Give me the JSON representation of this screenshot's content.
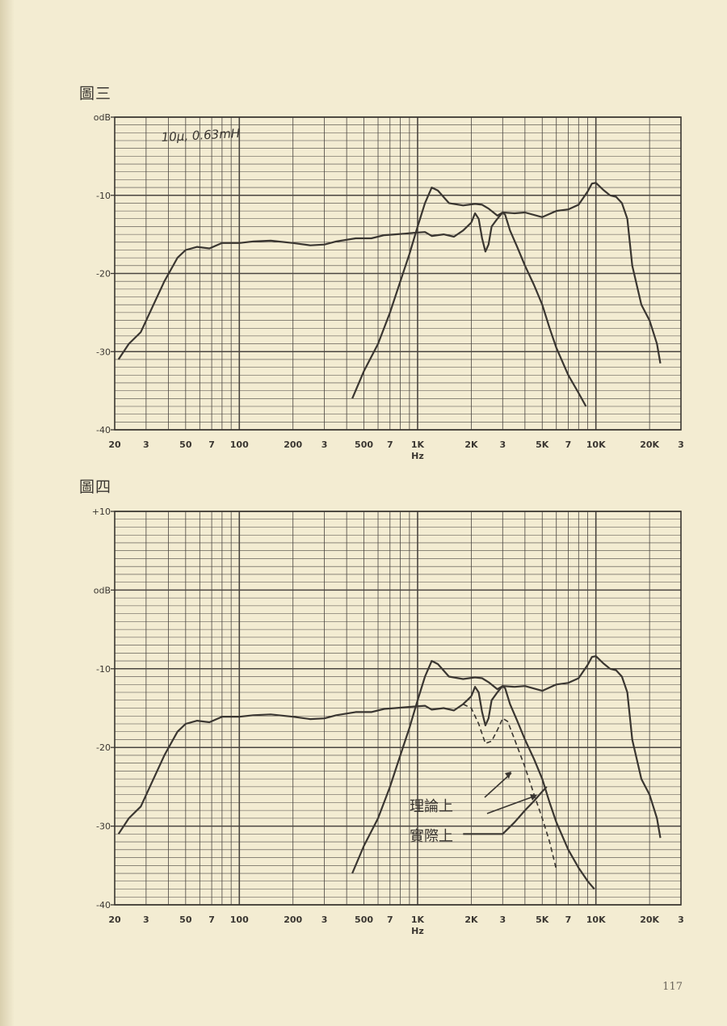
{
  "figures": [
    {
      "label": "圖三",
      "annotation": "10μ, 0.63mH"
    },
    {
      "label": "圖四",
      "annotation_theory": "理論上",
      "annotation_actual": "實際上"
    }
  ],
  "page_number": "117",
  "chart_data": [
    {
      "type": "line",
      "title": "圖三",
      "xlabel": "Hz",
      "ylabel": "",
      "x_scale": "log",
      "xlim": [
        20,
        30000
      ],
      "ylim": [
        -40,
        0
      ],
      "grid": true,
      "x_ticks": [
        {
          "v": 20,
          "t": "20"
        },
        {
          "v": 30,
          "t": "3"
        },
        {
          "v": 50,
          "t": "50"
        },
        {
          "v": 70,
          "t": "7"
        },
        {
          "v": 100,
          "t": "100"
        },
        {
          "v": 200,
          "t": "200"
        },
        {
          "v": 300,
          "t": "3"
        },
        {
          "v": 500,
          "t": "500"
        },
        {
          "v": 700,
          "t": "7"
        },
        {
          "v": 1000,
          "t": "1K"
        },
        {
          "v": 2000,
          "t": "2K"
        },
        {
          "v": 3000,
          "t": "3"
        },
        {
          "v": 5000,
          "t": "5K"
        },
        {
          "v": 7000,
          "t": "7"
        },
        {
          "v": 10000,
          "t": "10K"
        },
        {
          "v": 20000,
          "t": "20K"
        },
        {
          "v": 30000,
          "t": "3"
        }
      ],
      "y_ticks": [
        {
          "v": 0,
          "t": "odB"
        },
        {
          "v": -10,
          "t": "-10"
        },
        {
          "v": -20,
          "t": "-20"
        },
        {
          "v": -30,
          "t": "-30"
        },
        {
          "v": -40,
          "t": "-40"
        }
      ],
      "series": [
        {
          "style": "solid",
          "x": [
            21,
            24,
            28,
            33,
            38,
            45,
            50,
            58,
            68,
            80,
            100,
            120,
            150,
            200,
            250,
            300,
            350,
            450,
            550,
            650,
            750,
            850,
            950,
            1100,
            1200,
            1400,
            1600,
            1800,
            2000
          ],
          "y": [
            -31,
            -29,
            -27.5,
            -24,
            -21,
            -18,
            -17,
            -16.6,
            -16.8,
            -16.1,
            -16.1,
            -15.9,
            -15.8,
            -16.1,
            -16.4,
            -16.3,
            -15.9,
            -15.5,
            -15.5,
            -15.1,
            -15.0,
            -14.9,
            -14.8,
            -14.7,
            -15.2,
            -15.0,
            -15.3,
            -14.5,
            -13.5
          ]
        },
        {
          "style": "solid",
          "x": [
            430,
            500,
            600,
            700,
            800,
            900,
            1000,
            1100,
            1200,
            1300,
            1500,
            1800,
            2100,
            2300,
            2500,
            2800,
            3000,
            3500,
            4000,
            5000,
            6000,
            7000,
            8000,
            9000,
            9500,
            10000,
            11000,
            12000,
            13000,
            14000,
            15000,
            16000,
            18000,
            20000,
            22000,
            23000
          ],
          "y": [
            -36,
            -32.5,
            -29,
            -25,
            -21,
            -17.5,
            -14,
            -11,
            -9,
            -9.4,
            -11,
            -11.3,
            -11.1,
            -11.2,
            -11.7,
            -12.6,
            -12.2,
            -12.3,
            -12.2,
            -12.8,
            -12.0,
            -11.8,
            -11.2,
            -9.5,
            -8.5,
            -8.4,
            -9.3,
            -10.0,
            -10.2,
            -11.0,
            -13,
            -19,
            -24,
            -26,
            -29,
            -31.5
          ]
        },
        {
          "style": "solid",
          "x": [
            2000,
            2100,
            2200,
            2300,
            2400,
            2500,
            2600,
            2800,
            2900,
            3000,
            3100,
            3300,
            3600,
            4000,
            4500,
            5000,
            5500,
            6000,
            7000,
            8000,
            8800
          ],
          "y": [
            -13.5,
            -12.3,
            -13,
            -15.5,
            -17.2,
            -16.3,
            -14.0,
            -13.0,
            -12.6,
            -12.2,
            -12.5,
            -14.5,
            -16.5,
            -19,
            -21.5,
            -24,
            -27,
            -29.5,
            -33,
            -35.3,
            -37
          ]
        }
      ]
    },
    {
      "type": "line",
      "title": "圖四",
      "xlabel": "Hz",
      "ylabel": "",
      "x_scale": "log",
      "xlim": [
        20,
        30000
      ],
      "ylim": [
        -40,
        10
      ],
      "grid": true,
      "x_ticks": [
        {
          "v": 20,
          "t": "20"
        },
        {
          "v": 30,
          "t": "3"
        },
        {
          "v": 50,
          "t": "50"
        },
        {
          "v": 70,
          "t": "7"
        },
        {
          "v": 100,
          "t": "100"
        },
        {
          "v": 200,
          "t": "200"
        },
        {
          "v": 300,
          "t": "3"
        },
        {
          "v": 500,
          "t": "500"
        },
        {
          "v": 700,
          "t": "7"
        },
        {
          "v": 1000,
          "t": "1K"
        },
        {
          "v": 2000,
          "t": "2K"
        },
        {
          "v": 3000,
          "t": "3"
        },
        {
          "v": 5000,
          "t": "5K"
        },
        {
          "v": 7000,
          "t": "7"
        },
        {
          "v": 10000,
          "t": "10K"
        },
        {
          "v": 20000,
          "t": "20K"
        },
        {
          "v": 30000,
          "t": "3"
        }
      ],
      "y_ticks": [
        {
          "v": 10,
          "t": "+10"
        },
        {
          "v": 0,
          "t": "odB"
        },
        {
          "v": -10,
          "t": "-10"
        },
        {
          "v": -20,
          "t": "-20"
        },
        {
          "v": -30,
          "t": "-30"
        },
        {
          "v": -40,
          "t": "-40"
        }
      ],
      "series": [
        {
          "style": "solid",
          "x": [
            21,
            24,
            28,
            33,
            38,
            45,
            50,
            58,
            68,
            80,
            100,
            120,
            150,
            200,
            250,
            300,
            350,
            450,
            550,
            650,
            750,
            850,
            950,
            1100,
            1200,
            1400,
            1600,
            1800,
            2000
          ],
          "y": [
            -31,
            -29,
            -27.5,
            -24,
            -21,
            -18,
            -17,
            -16.6,
            -16.8,
            -16.1,
            -16.1,
            -15.9,
            -15.8,
            -16.1,
            -16.4,
            -16.3,
            -15.9,
            -15.5,
            -15.5,
            -15.1,
            -15.0,
            -14.9,
            -14.8,
            -14.7,
            -15.2,
            -15.0,
            -15.3,
            -14.5,
            -13.5
          ]
        },
        {
          "style": "solid",
          "x": [
            430,
            500,
            600,
            700,
            800,
            900,
            1000,
            1100,
            1200,
            1300,
            1500,
            1800,
            2100,
            2300,
            2500,
            2800,
            3000,
            3500,
            4000,
            5000,
            6000,
            7000,
            8000,
            9000,
            9500,
            10000,
            11000,
            12000,
            13000,
            14000,
            15000,
            16000,
            18000,
            20000,
            22000,
            23000
          ],
          "y": [
            -36,
            -32.5,
            -29,
            -25,
            -21,
            -17.5,
            -14,
            -11,
            -9,
            -9.4,
            -11,
            -11.3,
            -11.1,
            -11.2,
            -11.7,
            -12.6,
            -12.2,
            -12.3,
            -12.2,
            -12.8,
            -12.0,
            -11.8,
            -11.2,
            -9.5,
            -8.5,
            -8.4,
            -9.3,
            -10.0,
            -10.2,
            -11.0,
            -13,
            -19,
            -24,
            -26,
            -29,
            -31.5
          ]
        },
        {
          "style": "solid",
          "x": [
            2000,
            2100,
            2200,
            2300,
            2400,
            2500,
            2600,
            2800,
            2900,
            3000,
            3100,
            3300,
            3600,
            4000,
            4500,
            5000,
            5500,
            6000,
            7000,
            8000,
            9000,
            9800
          ],
          "y": [
            -13.5,
            -12.3,
            -13,
            -15.5,
            -17.2,
            -16.3,
            -14.0,
            -13.0,
            -12.6,
            -12.2,
            -12.5,
            -14.5,
            -16.5,
            -19,
            -21.5,
            -24,
            -27,
            -29.5,
            -33,
            -35.3,
            -37,
            -38
          ]
        },
        {
          "style": "dashed",
          "x": [
            1800,
            2000,
            2200,
            2400,
            2600,
            2800,
            3000,
            3200,
            3500,
            4000,
            4500,
            5000,
            5500,
            6000
          ],
          "y": [
            -14.5,
            -15,
            -17,
            -19.5,
            -19.2,
            -17.8,
            -16.3,
            -16.7,
            -19,
            -22.5,
            -26,
            -29,
            -32,
            -35.5
          ]
        },
        {
          "style": "solid",
          "x": [
            1800,
            2200,
            2600,
            3000,
            3500,
            4000,
            4500,
            5000,
            5300
          ],
          "y": [
            -31,
            -31,
            -31,
            -31,
            -29.5,
            -28,
            -26.8,
            -25.6,
            -25
          ]
        }
      ]
    }
  ]
}
